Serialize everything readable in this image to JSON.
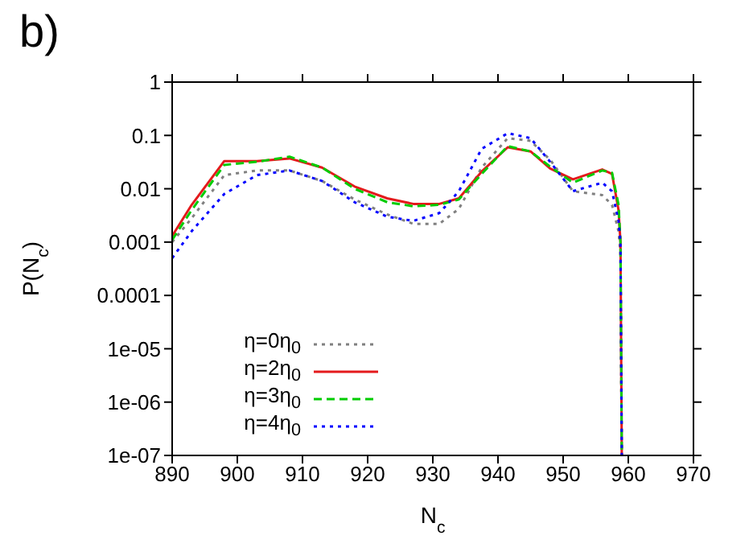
{
  "chart_data": {
    "type": "line",
    "title": "b)",
    "xlabel": "N$_{c}$",
    "ylabel": "P(N$_{c}$)",
    "log": "y",
    "x": [
      890,
      893,
      898,
      903,
      908,
      913,
      918,
      923,
      927,
      931,
      934,
      937.5,
      941.5,
      945,
      948,
      951.5,
      956,
      957.5,
      958.5,
      958.8,
      959
    ],
    "xlim": [
      890,
      970
    ],
    "xticks": [
      890,
      900,
      910,
      920,
      930,
      940,
      950,
      960,
      970
    ],
    "ylim": [
      1e-07,
      1
    ],
    "yticks": [
      {
        "value": 1e-07,
        "label": "1e-07"
      },
      {
        "value": 1e-06,
        "label": "1e-06"
      },
      {
        "value": 1e-05,
        "label": "1e-05"
      },
      0.0001,
      0.001,
      0.01,
      0.1,
      1
    ],
    "legend": "bottom left",
    "grid": false,
    "series": [
      {
        "name": "η=0η$_{0}$",
        "color": "#808080",
        "line_style": "dotted",
        "values": [
          0.001,
          0.0028,
          0.018,
          0.022,
          0.022,
          0.014,
          0.0063,
          0.0033,
          0.0022,
          0.0022,
          0.0042,
          0.025,
          0.089,
          0.079,
          0.035,
          0.009,
          0.0076,
          0.005,
          0.0016,
          0.0006,
          1e-07
        ]
      },
      {
        "name": "η=2η$_{0}$",
        "color": "#e41a1c",
        "line_style": "solid",
        "values": [
          0.0013,
          0.005,
          0.033,
          0.033,
          0.037,
          0.025,
          0.011,
          0.0066,
          0.0052,
          0.0052,
          0.0066,
          0.021,
          0.06,
          0.05,
          0.024,
          0.015,
          0.023,
          0.019,
          0.004,
          0.001,
          1e-07
        ]
      },
      {
        "name": "η=3η$_{0}$",
        "color": "#00cc00",
        "line_style": "dashed",
        "values": [
          0.0011,
          0.004,
          0.028,
          0.032,
          0.04,
          0.025,
          0.01,
          0.0056,
          0.0047,
          0.005,
          0.0063,
          0.019,
          0.063,
          0.05,
          0.026,
          0.013,
          0.022,
          0.02,
          0.005,
          0.001,
          1e-07
        ]
      },
      {
        "name": "η=4η$_{0}$",
        "color": "#0000ff",
        "line_style": "dotted",
        "values": [
          0.0005,
          0.0016,
          0.008,
          0.018,
          0.022,
          0.014,
          0.0056,
          0.003,
          0.0025,
          0.0035,
          0.009,
          0.056,
          0.11,
          0.089,
          0.032,
          0.009,
          0.013,
          0.009,
          0.0025,
          0.001,
          1e-07
        ]
      }
    ]
  }
}
